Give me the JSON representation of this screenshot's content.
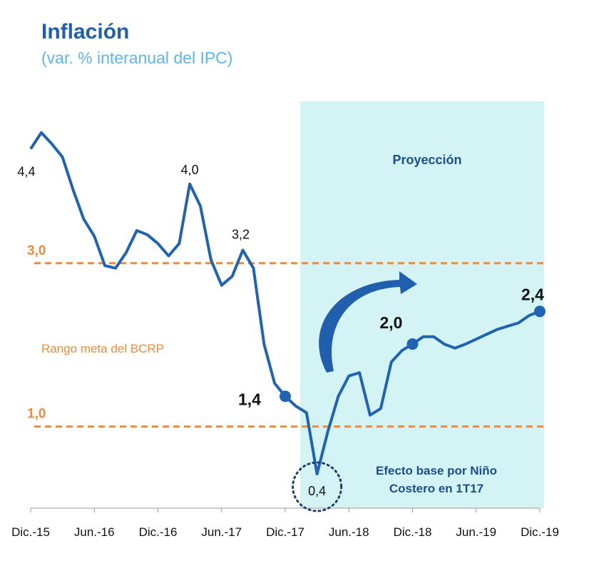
{
  "title": "Inflación",
  "subtitle": "(var. % interanual del IPC)",
  "chart_data": {
    "type": "line",
    "title": "Inflación",
    "subtitle": "(var. % interanual del IPC)",
    "xlabel": "",
    "ylabel": "",
    "ylim": [
      0,
      5
    ],
    "grid": false,
    "x_tick_labels": [
      "Dic.-15",
      "Jun.-16",
      "Dic.-16",
      "Jun.-17",
      "Dic.-17",
      "Jun.-18",
      "Dic.-18",
      "Jun.-19",
      "Dic.-19"
    ],
    "series": [
      {
        "color": "#1f64b4",
        "values": [
          4.4,
          4.6,
          4.46,
          4.3,
          3.9,
          3.54,
          3.33,
          2.97,
          2.94,
          3.13,
          3.4,
          3.35,
          3.24,
          3.09,
          3.24,
          3.97,
          3.7,
          3.04,
          2.73,
          2.84,
          3.16,
          2.94,
          2.01,
          1.53,
          1.37,
          1.25,
          1.17,
          0.42,
          0.93,
          1.37,
          1.62,
          1.66,
          1.14,
          1.22,
          1.79,
          1.93,
          2.01,
          2.1,
          2.1,
          2.01,
          1.96,
          2.01,
          2.07,
          2.13,
          2.19,
          2.23,
          2.27,
          2.36,
          2.41
        ]
      }
    ],
    "target_range": {
      "label": "Rango meta del BCRP",
      "lower": 1.0,
      "upper": 3.0,
      "lower_label": "1,0",
      "upper_label": "3,0",
      "color": "#f08a3c"
    },
    "projection": {
      "label": "Proyección",
      "color": "#d4f3f5"
    },
    "annotations": [
      {
        "text": "4,4",
        "index": 0,
        "style": "plain"
      },
      {
        "text": "4,0",
        "index": 15,
        "style": "plain"
      },
      {
        "text": "3,2",
        "index": 20,
        "style": "plain"
      },
      {
        "text": "1,4",
        "index": 24,
        "style": "bold",
        "marker": true
      },
      {
        "text": "0,4",
        "index": 27,
        "style": "plain",
        "circled": true
      },
      {
        "text": "2,0",
        "index": 36,
        "style": "bold",
        "marker": true
      },
      {
        "text": "2,4",
        "index": 48,
        "style": "bold",
        "marker": true
      }
    ],
    "note": "Efecto base por Niño Costero en 1T17",
    "note_lines": [
      "Efecto base por Niño",
      "Costero en 1T17"
    ]
  }
}
